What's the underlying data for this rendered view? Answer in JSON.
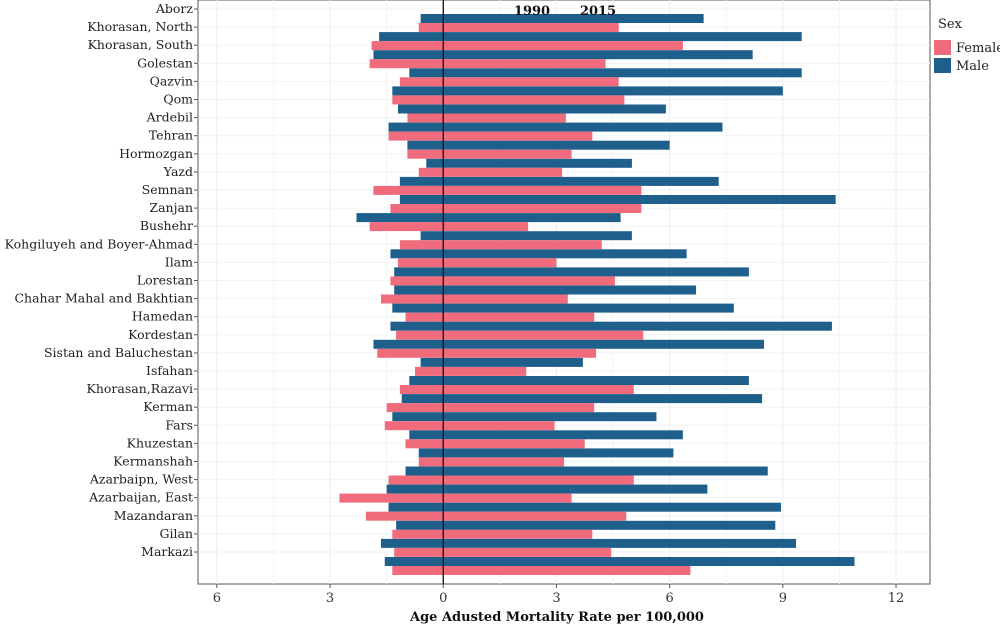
{
  "chart_data": {
    "type": "bar",
    "orientation": "horizontal",
    "xlabel": "Age Adusted Mortality Rate per 100,000",
    "xlim": [
      -6.5,
      12.9
    ],
    "x_ticks": [
      -6,
      -3,
      0,
      3,
      6,
      9,
      12
    ],
    "x_tick_labels": [
      "6",
      "3",
      "0",
      "3",
      "6",
      "9",
      "12"
    ],
    "annotations": [
      "1990",
      "2015"
    ],
    "grid": true,
    "legend": {
      "title": "Sex",
      "position": "right",
      "entries": [
        "Female",
        "Male"
      ]
    },
    "categories": [
      "Aborz",
      "Khorasan, North",
      "Khorasan, South",
      "Golestan",
      "Qazvin",
      "Qom",
      "Ardebil",
      "Tehran",
      "Hormozgan",
      "Yazd",
      "Semnan",
      "Zanjan",
      "Bushehr",
      "Kohgiluyeh and Boyer-Ahmad",
      "Ilam",
      "Lorestan",
      "Chahar Mahal and Bakhtian",
      "Hamedan",
      "Kordestan",
      "Sistan and Baluchestan",
      "Isfahan",
      "Khorasan,Razavi",
      "Kerman",
      "Fars",
      "Khuzestan",
      "Kermanshah",
      "Azarbaipn, West",
      "Azarbaijan, East",
      "Mazandaran",
      "Gilan",
      "Markazi"
    ],
    "series": [
      {
        "name": "Male",
        "color": "#1f5f8b",
        "start": [
          -0.6,
          -1.7,
          -1.85,
          -0.9,
          -1.35,
          -1.2,
          -1.45,
          -0.95,
          -0.45,
          -1.15,
          -1.15,
          -2.3,
          -0.6,
          -1.4,
          -1.3,
          -1.3,
          -1.35,
          -1.4,
          -1.85,
          -0.6,
          -0.9,
          -1.1,
          -1.35,
          -0.9,
          -0.65,
          -1.0,
          -1.5,
          -1.45,
          -1.25,
          -1.65,
          -1.55
        ],
        "end": [
          6.9,
          9.5,
          8.2,
          9.5,
          9.0,
          5.9,
          7.4,
          6.0,
          5.0,
          7.3,
          10.4,
          4.7,
          5.0,
          6.45,
          8.1,
          6.7,
          7.7,
          10.3,
          8.5,
          3.7,
          8.1,
          8.45,
          5.65,
          6.35,
          6.1,
          8.6,
          7.0,
          8.95,
          8.8,
          9.35,
          10.9
        ]
      },
      {
        "name": "Female",
        "color": "#f06b7b",
        "start": [
          -0.65,
          -1.9,
          -1.95,
          -1.15,
          -1.35,
          -0.95,
          -1.45,
          -0.95,
          -0.65,
          -1.85,
          -1.4,
          -1.95,
          -1.15,
          -1.2,
          -1.4,
          -1.65,
          -1.0,
          -1.25,
          -1.75,
          -0.75,
          -1.15,
          -1.5,
          -1.55,
          -1.0,
          -0.65,
          -1.45,
          -2.75,
          -2.05,
          -1.35,
          -1.3,
          -1.35
        ],
        "end": [
          4.65,
          6.35,
          4.3,
          4.65,
          4.8,
          3.25,
          3.95,
          3.4,
          3.15,
          5.25,
          5.25,
          2.25,
          4.2,
          3.0,
          4.55,
          3.3,
          4.0,
          5.3,
          4.05,
          2.2,
          5.05,
          4.0,
          2.95,
          3.75,
          3.2,
          5.05,
          3.4,
          4.85,
          3.95,
          4.45,
          6.55
        ]
      }
    ]
  }
}
